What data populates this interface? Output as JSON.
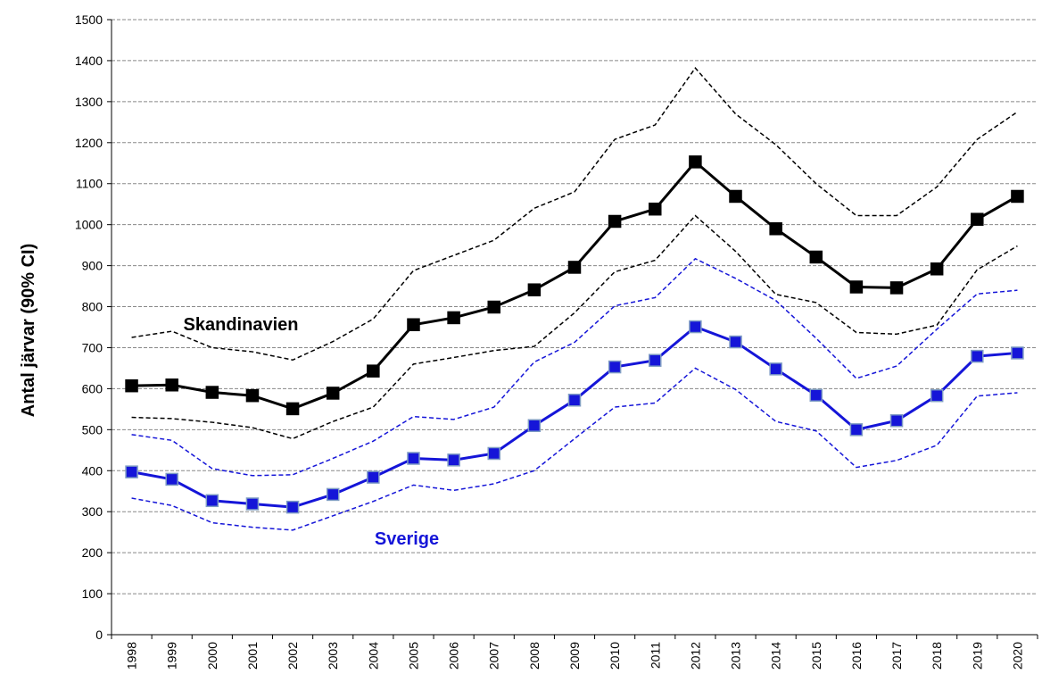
{
  "chart_data": {
    "type": "line",
    "y_label": "Antal järvar (90% CI)",
    "categories": [
      "1998",
      "1999",
      "2000",
      "2001",
      "2002",
      "2003",
      "2004",
      "2005",
      "2006",
      "2007",
      "2008",
      "2009",
      "2010",
      "2011",
      "2012",
      "2013",
      "2014",
      "2015",
      "2016",
      "2017",
      "2018",
      "2019",
      "2020"
    ],
    "series": [
      {
        "name": "Skandinavien",
        "color": "#000000",
        "marker_stroke": "#000000",
        "values": [
          607,
          609,
          591,
          583,
          551,
          589,
          643,
          756,
          773,
          799,
          841,
          896,
          1008,
          1038,
          1153,
          1069,
          990,
          921,
          848,
          846,
          892,
          1013,
          1069
        ],
        "upper": [
          725,
          740,
          700,
          690,
          670,
          715,
          770,
          888,
          925,
          962,
          1040,
          1080,
          1208,
          1243,
          1382,
          1270,
          1195,
          1100,
          1022,
          1022,
          1092,
          1208,
          1275
        ],
        "lower": [
          530,
          527,
          518,
          505,
          478,
          520,
          555,
          660,
          676,
          693,
          703,
          785,
          885,
          913,
          1022,
          935,
          830,
          810,
          737,
          733,
          755,
          890,
          948
        ]
      },
      {
        "name": "Sverige",
        "color": "#1515d8",
        "marker_stroke": "#7f9cc4",
        "values": [
          397,
          379,
          327,
          319,
          311,
          342,
          384,
          430,
          426,
          442,
          510,
          572,
          653,
          669,
          751,
          714,
          648,
          584,
          500,
          522,
          583,
          679,
          687
        ],
        "upper": [
          488,
          474,
          405,
          388,
          390,
          430,
          472,
          532,
          525,
          555,
          665,
          713,
          802,
          822,
          917,
          869,
          815,
          723,
          625,
          655,
          745,
          831,
          840
        ],
        "lower": [
          333,
          315,
          273,
          262,
          255,
          290,
          325,
          365,
          352,
          368,
          400,
          478,
          555,
          565,
          650,
          598,
          520,
          497,
          408,
          425,
          462,
          582,
          590
        ]
      }
    ],
    "ylim": [
      0,
      1500
    ],
    "yticks": [
      0,
      100,
      200,
      300,
      400,
      500,
      600,
      700,
      800,
      900,
      1000,
      1100,
      1200,
      1300,
      1400,
      1500
    ],
    "grid": true
  }
}
